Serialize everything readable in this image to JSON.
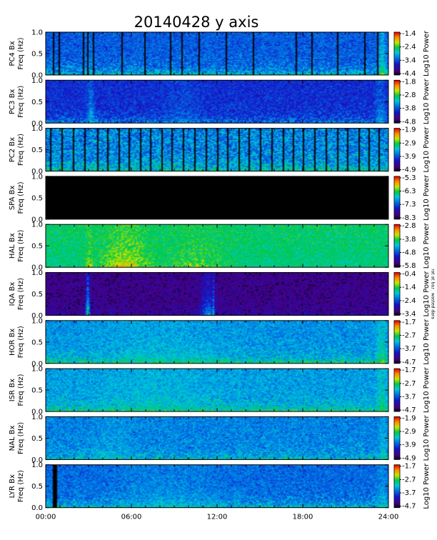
{
  "title": "20140428 y axis",
  "chart_data": {
    "type": "heatmap",
    "title": "20140428 y axis",
    "x_ticks": [
      "00:00",
      "06:00",
      "12:00",
      "18:00",
      "24:00"
    ],
    "x_range_hours": [
      0,
      24
    ],
    "colorbar_label": "Log10 Power",
    "colormap": "rainbow (black → purple → blue → cyan → green → yellow → orange → red)",
    "panels": [
      {
        "station": "PC4",
        "ylabel_line1": "PC4  Bx",
        "ylabel_line2": "Freq (Hz)",
        "y_ticks": [
          "0.0",
          "0.5",
          "1.0"
        ],
        "y_range": [
          0,
          1
        ],
        "cbar_ticks": [
          "-1.4",
          "-2.4",
          "-3.4",
          "-4.4"
        ],
        "cbar_range": [
          -4.4,
          -1.4
        ],
        "base_level": 0.3,
        "low_freq_boost": 0.25,
        "gap_hours": [
          0.5,
          0.9,
          2.6,
          2.9,
          3.3,
          5.3,
          6.9,
          8.7,
          9.5,
          10.7,
          12.6,
          14.5,
          17.5,
          18.6,
          20.4,
          22.3,
          23.2
        ],
        "gap_level": 0.0,
        "events": [
          {
            "t": 23.5,
            "w": 0.3,
            "level": 0.7
          },
          {
            "t": 2.9,
            "w": 0.4,
            "level": 0.45
          }
        ]
      },
      {
        "station": "PC3",
        "ylabel_line1": "PC3  Bx",
        "ylabel_line2": "Freq (Hz)",
        "y_ticks": [
          "0.0",
          "0.5",
          "1.0"
        ],
        "y_range": [
          0,
          1
        ],
        "cbar_ticks": [
          "-1.8",
          "-2.8",
          "-3.8",
          "-4.8"
        ],
        "cbar_range": [
          -4.8,
          -1.8
        ],
        "base_level": 0.22,
        "low_freq_boost": 0.2,
        "gap_hours": [],
        "gap_level": 0.0,
        "events": [
          {
            "t": 3.1,
            "w": 0.3,
            "level": 0.55
          },
          {
            "t": 9.5,
            "w": 1.5,
            "level": 0.4
          },
          {
            "t": 23.4,
            "w": 0.4,
            "level": 0.5
          }
        ]
      },
      {
        "station": "PC2",
        "ylabel_line1": "PC2  Bx",
        "ylabel_line2": "Freq (Hz)",
        "y_ticks": [
          "0.0",
          "0.5",
          "1.0"
        ],
        "y_range": [
          0,
          1
        ],
        "cbar_ticks": [
          "-1.9",
          "-2.9",
          "-3.9",
          "-4.9"
        ],
        "cbar_range": [
          -4.9,
          -1.9
        ],
        "base_level": 0.42,
        "low_freq_boost": 0.15,
        "gap_hours": [
          0.3,
          1.1,
          1.9,
          2.7,
          3.6,
          4.3,
          5.1,
          5.8,
          6.6,
          7.3,
          8.1,
          8.8,
          9.6,
          10.4,
          11.2,
          12.0,
          12.7,
          13.5,
          14.2,
          15.0,
          15.8,
          16.6,
          17.3,
          18.0,
          18.8,
          19.6,
          20.4,
          21.1,
          21.9,
          22.6,
          23.3
        ],
        "gap_level": 0.0,
        "events": []
      },
      {
        "station": "SPA",
        "ylabel_line1": "SPA  Bx",
        "ylabel_line2": "Freq (Hz)",
        "y_ticks": [
          "0.0",
          "0.5",
          "1.0"
        ],
        "y_range": [
          0,
          1
        ],
        "cbar_ticks": [
          "-5.3",
          "-6.3",
          "-7.3",
          "-8.3"
        ],
        "cbar_range": [
          -8.3,
          -5.3
        ],
        "base_level": 0.0,
        "low_freq_boost": 0.0,
        "gap_hours": [],
        "gap_level": 0.0,
        "events": []
      },
      {
        "station": "HAL",
        "ylabel_line1": "HAL  Bx",
        "ylabel_line2": "Freq (Hz)",
        "y_ticks": [
          "0.0",
          "0.5",
          "1.0"
        ],
        "y_range": [
          0,
          1
        ],
        "cbar_ticks": [
          "-2.8",
          "-3.8",
          "-4.8",
          "-5.8"
        ],
        "cbar_range": [
          -5.8,
          -2.8
        ],
        "base_level": 0.55,
        "low_freq_boost": -0.2,
        "gap_hours": [],
        "gap_level": 0.0,
        "events": [
          {
            "t": 5.5,
            "w": 2.0,
            "level": 0.8
          },
          {
            "t": 10.5,
            "w": 2.5,
            "level": 0.7
          },
          {
            "t": 3.0,
            "w": 0.3,
            "level": 0.75
          }
        ]
      },
      {
        "station": "IQA",
        "ylabel_line1": "IQA  Bx",
        "ylabel_line2": "Freq (Hz)",
        "y_ticks": [
          "0.0",
          "0.5",
          "1.0"
        ],
        "y_range": [
          0,
          1
        ],
        "cbar_ticks": [
          "-0.4",
          "-1.4",
          "-2.4",
          "-3.4"
        ],
        "cbar_range": [
          -3.4,
          -0.4
        ],
        "base_level": 0.05,
        "low_freq_boost": 0.1,
        "gap_hours": [],
        "gap_level": 0.0,
        "events": [
          {
            "t": 2.9,
            "w": 0.15,
            "level": 0.7
          },
          {
            "t": 11.3,
            "w": 0.6,
            "level": 0.45
          },
          {
            "t": 11.7,
            "w": 0.04,
            "level": 0.55
          }
        ],
        "side_note": "ɐɹɐp pǝʇsɐʍ ˙ɾɐq ʇɐ ʇɐɹ"
      },
      {
        "station": "HOR",
        "ylabel_line1": "HOR  Bx",
        "ylabel_line2": "Freq (Hz)",
        "y_ticks": [
          "0.0",
          "0.5",
          "1.0"
        ],
        "y_range": [
          0,
          1
        ],
        "cbar_ticks": [
          "-1.7",
          "-2.7",
          "-3.7",
          "-4.7"
        ],
        "cbar_range": [
          -4.7,
          -1.7
        ],
        "base_level": 0.38,
        "low_freq_boost": 0.25,
        "gap_hours": [],
        "gap_level": 0.0,
        "events": [
          {
            "t": 8.0,
            "w": 5.0,
            "level": 0.55
          },
          {
            "t": 23.5,
            "w": 0.4,
            "level": 0.7
          }
        ]
      },
      {
        "station": "ISR",
        "ylabel_line1": "ISR  Bx",
        "ylabel_line2": "Freq (Hz)",
        "y_ticks": [
          "0.0",
          "0.5",
          "1.0"
        ],
        "y_range": [
          0,
          1
        ],
        "cbar_ticks": [
          "-1.7",
          "-2.7",
          "-3.7",
          "-4.7"
        ],
        "cbar_range": [
          -4.7,
          -1.7
        ],
        "base_level": 0.4,
        "low_freq_boost": 0.22,
        "gap_hours": [],
        "gap_level": 0.0,
        "events": [
          {
            "t": 7.5,
            "w": 4.5,
            "level": 0.55
          },
          {
            "t": 23.5,
            "w": 0.4,
            "level": 0.65
          }
        ]
      },
      {
        "station": "NAL",
        "ylabel_line1": "NAL  Bx",
        "ylabel_line2": "Freq (Hz)",
        "y_ticks": [
          "0.0",
          "0.5",
          "1.0"
        ],
        "y_range": [
          0,
          1
        ],
        "cbar_ticks": [
          "-1.9",
          "-2.9",
          "-3.9",
          "-4.9"
        ],
        "cbar_range": [
          -4.9,
          -1.9
        ],
        "base_level": 0.36,
        "low_freq_boost": 0.18,
        "gap_hours": [],
        "gap_level": 0.0,
        "events": [
          {
            "t": 4.5,
            "w": 1.5,
            "level": 0.5
          },
          {
            "t": 23.6,
            "w": 0.3,
            "level": 0.6
          }
        ]
      },
      {
        "station": "LYR",
        "ylabel_line1": "LYR  Bx",
        "ylabel_line2": "Freq (Hz)",
        "y_ticks": [
          "0.0",
          "0.5",
          "1.0"
        ],
        "y_range": [
          0,
          1
        ],
        "cbar_ticks": [
          "-1.7",
          "-2.7",
          "-3.7",
          "-4.7"
        ],
        "cbar_range": [
          -4.7,
          -1.7
        ],
        "base_level": 0.32,
        "low_freq_boost": 0.22,
        "gap_hours": [
          0.55,
          0.7
        ],
        "gap_level": 0.0,
        "events": [
          {
            "t": 8.5,
            "w": 4.5,
            "level": 0.5
          },
          {
            "t": 23.5,
            "w": 0.4,
            "level": 0.55
          }
        ]
      }
    ]
  }
}
